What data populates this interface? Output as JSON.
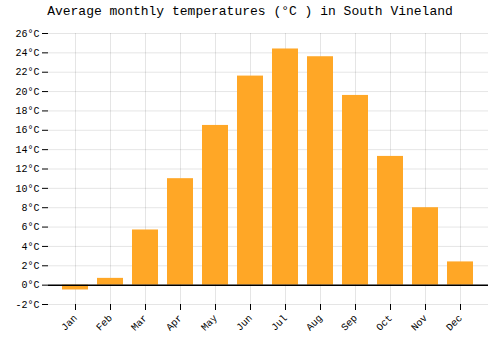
{
  "chart_data": {
    "type": "bar",
    "title": "Average monthly temperatures (°C ) in South Vineland",
    "categories": [
      "Jan",
      "Feb",
      "Mar",
      "Apr",
      "May",
      "Jun",
      "Jul",
      "Aug",
      "Sep",
      "Oct",
      "Nov",
      "Dec"
    ],
    "values": [
      -0.5,
      0.7,
      5.7,
      11.0,
      16.5,
      21.6,
      24.4,
      23.6,
      19.6,
      13.3,
      8.0,
      2.4
    ],
    "color": "#FFA726",
    "ylim": [
      -2,
      26
    ],
    "yticks": [
      {
        "value": -2,
        "label": "-2°C"
      },
      {
        "value": 0,
        "label": "0°C"
      },
      {
        "value": 2,
        "label": "2°C"
      },
      {
        "value": 4,
        "label": "4°C"
      },
      {
        "value": 6,
        "label": "6°C"
      },
      {
        "value": 8,
        "label": "8°C"
      },
      {
        "value": 10,
        "label": "10°C"
      },
      {
        "value": 12,
        "label": "12°C"
      },
      {
        "value": 14,
        "label": "14°C"
      },
      {
        "value": 16,
        "label": "16°C"
      },
      {
        "value": 18,
        "label": "18°C"
      },
      {
        "value": 20,
        "label": "20°C"
      },
      {
        "value": 22,
        "label": "22°C"
      },
      {
        "value": 24,
        "label": "24°C"
      },
      {
        "value": 26,
        "label": "26°C"
      }
    ],
    "grid": true
  }
}
